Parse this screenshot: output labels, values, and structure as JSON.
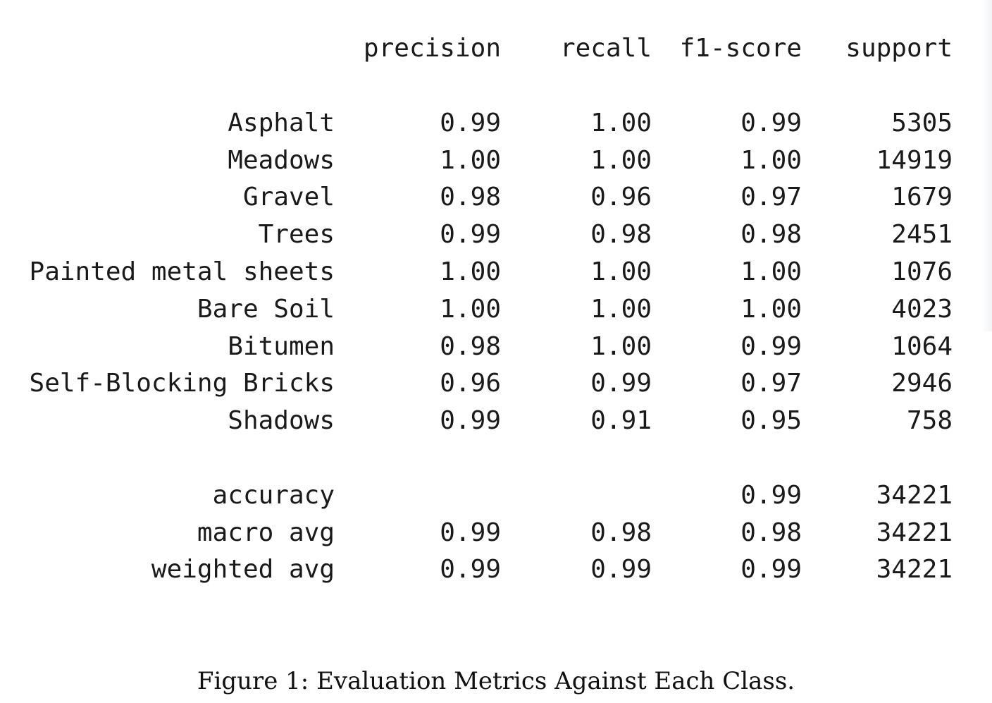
{
  "header": {
    "precision": "precision",
    "recall": "recall",
    "f1": "f1-score",
    "support": "support"
  },
  "classes": [
    {
      "label": "Asphalt",
      "precision": "0.99",
      "recall": "1.00",
      "f1": "0.99",
      "support": "5305"
    },
    {
      "label": "Meadows",
      "precision": "1.00",
      "recall": "1.00",
      "f1": "1.00",
      "support": "14919"
    },
    {
      "label": "Gravel",
      "precision": "0.98",
      "recall": "0.96",
      "f1": "0.97",
      "support": "1679"
    },
    {
      "label": "Trees",
      "precision": "0.99",
      "recall": "0.98",
      "f1": "0.98",
      "support": "2451"
    },
    {
      "label": "Painted metal sheets",
      "precision": "1.00",
      "recall": "1.00",
      "f1": "1.00",
      "support": "1076"
    },
    {
      "label": "Bare Soil",
      "precision": "1.00",
      "recall": "1.00",
      "f1": "1.00",
      "support": "4023"
    },
    {
      "label": "Bitumen",
      "precision": "0.98",
      "recall": "1.00",
      "f1": "0.99",
      "support": "1064"
    },
    {
      "label": "Self-Blocking Bricks",
      "precision": "0.96",
      "recall": "0.99",
      "f1": "0.97",
      "support": "2946"
    },
    {
      "label": "Shadows",
      "precision": "0.99",
      "recall": "0.91",
      "f1": "0.95",
      "support": "758"
    }
  ],
  "summary": [
    {
      "label": "accuracy",
      "precision": "",
      "recall": "",
      "f1": "0.99",
      "support": "34221"
    },
    {
      "label": "macro avg",
      "precision": "0.99",
      "recall": "0.98",
      "f1": "0.98",
      "support": "34221"
    },
    {
      "label": "weighted avg",
      "precision": "0.99",
      "recall": "0.99",
      "f1": "0.99",
      "support": "34221"
    }
  ],
  "caption": "Figure 1: Evaluation Metrics Against Each Class."
}
